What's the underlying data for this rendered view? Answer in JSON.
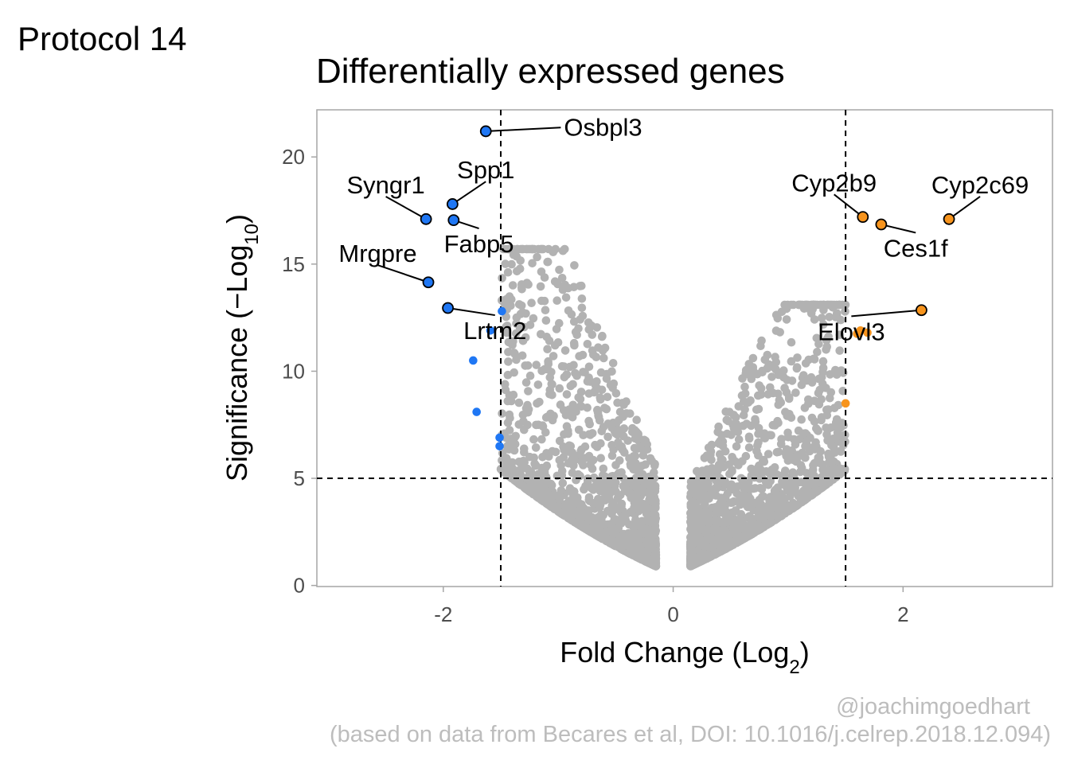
{
  "page": {
    "tag": "Protocol 14",
    "credit": "@joachimgoedhart",
    "source": "(based on data from Becares et al, DOI: 10.1016/j.celrep.2018.12.094)"
  },
  "colors": {
    "down": "#1F77F4",
    "up": "#F7941D",
    "background_points": "#B2B2B2",
    "caption": "#BDBDBD",
    "frame": "#A6A6A6",
    "threshold": "#000000"
  },
  "chart_data": {
    "type": "scatter",
    "title": "Differentially expressed genes",
    "xlabel": {
      "text": "Fold Change (Log",
      "sub": "2",
      "after": ")"
    },
    "ylabel": {
      "text": "Significance (−Log",
      "sub": "10",
      "after": ")"
    },
    "xlim": [
      -3.1,
      3.3
    ],
    "ylim": [
      -0.05,
      22.2
    ],
    "xticks": [
      -2,
      0,
      2
    ],
    "xtick_labels": [
      "-2",
      "0",
      "2"
    ],
    "yticks": [
      0,
      5,
      10,
      15,
      20
    ],
    "ytick_labels": [
      "0",
      "5",
      "10",
      "15",
      "20"
    ],
    "grid": false,
    "thresholds": {
      "fold_change": [
        -1.5,
        1.5
      ],
      "significance": 5
    },
    "series": [
      {
        "group": "down",
        "points": [
          {
            "x": -1.63,
            "y": 21.2,
            "label": "Osbpl3"
          },
          {
            "x": -1.92,
            "y": 17.8,
            "label": "Spp1"
          },
          {
            "x": -2.15,
            "y": 17.1,
            "label": "Syngr1"
          },
          {
            "x": -1.91,
            "y": 17.05,
            "label": "Fabp5"
          },
          {
            "x": -2.13,
            "y": 14.15,
            "label": "Mrgpre"
          },
          {
            "x": -1.96,
            "y": 12.95,
            "label": "Lrtm2"
          },
          {
            "x": -1.49,
            "y": 12.8
          },
          {
            "x": -1.59,
            "y": 11.9
          },
          {
            "x": -1.74,
            "y": 10.5
          },
          {
            "x": -1.71,
            "y": 8.1
          },
          {
            "x": -1.51,
            "y": 6.9
          },
          {
            "x": -1.51,
            "y": 6.5
          }
        ]
      },
      {
        "group": "up",
        "points": [
          {
            "x": 2.4,
            "y": 17.1,
            "label": "Cyp2c69"
          },
          {
            "x": 1.65,
            "y": 17.2,
            "label": "Cyp2b9"
          },
          {
            "x": 1.81,
            "y": 16.85,
            "label": "Ces1f"
          },
          {
            "x": 2.16,
            "y": 12.85,
            "label": "Elovl3"
          },
          {
            "x": 1.63,
            "y": 11.9
          },
          {
            "x": 1.69,
            "y": 11.8
          },
          {
            "x": 1.6,
            "y": 11.75
          },
          {
            "x": 1.5,
            "y": 8.5
          }
        ]
      },
      {
        "group": "not significant",
        "description": "approx. 3000 background genes (|log2FC| < 1.5 or -log10 p < 5) forming two wings",
        "shape": {
          "left_wing": {
            "x_range": [
              -1.5,
              -0.15
            ],
            "y_range": [
              0.9,
              15.7
            ]
          },
          "right_wing": {
            "x_range": [
              0.15,
              1.5
            ],
            "y_range": [
              0.9,
              13.1
            ]
          }
        }
      }
    ],
    "annotations": [
      {
        "text": "Osbpl3",
        "x": -0.95,
        "y": 21.0,
        "anchor": "start"
      },
      {
        "text": "Spp1",
        "x": -1.63,
        "y": 19.0,
        "anchor": "middle"
      },
      {
        "text": "Syngr1",
        "x": -2.5,
        "y": 18.3,
        "anchor": "middle"
      },
      {
        "text": "Fabp5",
        "x": -1.69,
        "y": 15.55,
        "anchor": "middle"
      },
      {
        "text": "Mrgpre",
        "x": -2.57,
        "y": 15.1,
        "anchor": "middle"
      },
      {
        "text": "Lrtm2",
        "x": -1.55,
        "y": 11.5,
        "anchor": "middle"
      },
      {
        "text": "Cyp2b9",
        "x": 1.4,
        "y": 18.4,
        "anchor": "middle"
      },
      {
        "text": "Cyp2c69",
        "x": 2.67,
        "y": 18.3,
        "anchor": "middle"
      },
      {
        "text": "Ces1f",
        "x": 2.11,
        "y": 15.35,
        "anchor": "middle"
      },
      {
        "text": "Elovl3",
        "x": 1.55,
        "y": 11.45,
        "anchor": "middle"
      }
    ]
  }
}
